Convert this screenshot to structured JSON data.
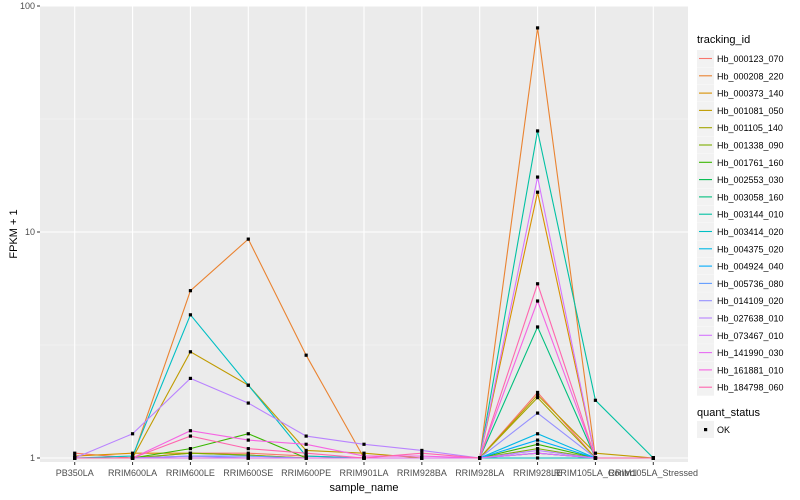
{
  "chart_data": {
    "type": "line",
    "title": "",
    "xlabel": "sample_name",
    "ylabel": "FPKM + 1",
    "yscale": "log10",
    "ylim": [
      0.96,
      100
    ],
    "yticks": [
      1,
      10,
      100
    ],
    "ytick_labels": [
      "1",
      "10",
      "100"
    ],
    "grid": true,
    "legend_placement": "right",
    "legend_title": "tracking_id",
    "shape_legend_title": "quant_status",
    "shape_legend_entries": [
      "OK"
    ],
    "categories": [
      "PB350LA",
      "RRIM600LA",
      "RRIM600LE",
      "RRIM600SE",
      "RRIM600PE",
      "RRIM901LA",
      "RRIM928BA",
      "RRIM928LA",
      "RRIM928LE",
      "RRIM105LA_Control",
      "RRIM105LA_Stressed"
    ],
    "series": [
      {
        "name": "Hb_000123_070",
        "color": "#F8766D",
        "values": [
          1.05,
          1.0,
          1.05,
          1.05,
          1.02,
          1.0,
          1.0,
          1.0,
          1.95,
          1.0,
          1.0
        ]
      },
      {
        "name": "Hb_000208_220",
        "color": "#EA8331",
        "values": [
          1.0,
          1.0,
          5.5,
          9.3,
          2.85,
          1.0,
          1.0,
          1.0,
          80.0,
          1.0,
          1.0
        ]
      },
      {
        "name": "Hb_000373_140",
        "color": "#D89000",
        "values": [
          1.02,
          1.05,
          1.05,
          1.03,
          1.0,
          1.0,
          1.0,
          1.0,
          15.0,
          1.0,
          1.0
        ]
      },
      {
        "name": "Hb_001081_050",
        "color": "#C09B00",
        "values": [
          1.0,
          1.0,
          2.95,
          2.1,
          1.08,
          1.05,
          1.0,
          1.0,
          1.9,
          1.05,
          1.0
        ]
      },
      {
        "name": "Hb_001105_140",
        "color": "#A3A500",
        "values": [
          1.0,
          1.0,
          1.0,
          1.0,
          1.0,
          1.0,
          1.0,
          1.0,
          1.85,
          1.0,
          1.0
        ]
      },
      {
        "name": "Hb_001338_090",
        "color": "#7CAE00",
        "values": [
          1.0,
          1.0,
          1.05,
          1.03,
          1.0,
          1.0,
          1.0,
          1.0,
          1.1,
          1.0,
          1.0
        ]
      },
      {
        "name": "Hb_001761_160",
        "color": "#39B600",
        "values": [
          1.0,
          1.0,
          1.1,
          1.28,
          1.0,
          1.0,
          1.0,
          1.0,
          1.15,
          1.0,
          1.0
        ]
      },
      {
        "name": "Hb_002553_030",
        "color": "#00BB4E",
        "values": [
          1.0,
          1.0,
          1.0,
          1.0,
          1.0,
          1.0,
          1.0,
          1.0,
          1.05,
          1.0,
          1.0
        ]
      },
      {
        "name": "Hb_003058_160",
        "color": "#00BF7D",
        "values": [
          1.0,
          1.0,
          1.0,
          1.0,
          1.0,
          1.0,
          1.0,
          1.0,
          3.8,
          1.0,
          1.0
        ]
      },
      {
        "name": "Hb_003144_010",
        "color": "#00C1A3",
        "values": [
          1.0,
          1.0,
          1.0,
          1.0,
          1.0,
          1.0,
          1.0,
          1.0,
          28.0,
          1.8,
          1.0
        ]
      },
      {
        "name": "Hb_003414_020",
        "color": "#00BFC4",
        "values": [
          1.0,
          1.02,
          4.3,
          2.1,
          1.02,
          1.0,
          1.0,
          1.0,
          1.0,
          1.0,
          1.0
        ]
      },
      {
        "name": "Hb_004375_020",
        "color": "#00B8E5",
        "values": [
          1.0,
          1.0,
          1.0,
          1.0,
          1.0,
          1.0,
          1.0,
          1.0,
          1.28,
          1.0,
          1.0
        ]
      },
      {
        "name": "Hb_004924_040",
        "color": "#00ACFC",
        "values": [
          1.0,
          1.0,
          1.0,
          1.0,
          1.0,
          1.0,
          1.0,
          1.0,
          1.2,
          1.0,
          1.0
        ]
      },
      {
        "name": "Hb_005736_080",
        "color": "#619CFF",
        "values": [
          1.0,
          1.0,
          1.02,
          1.02,
          1.0,
          1.0,
          1.0,
          1.0,
          1.05,
          1.0,
          1.0
        ]
      },
      {
        "name": "Hb_014109_020",
        "color": "#9590FF",
        "values": [
          1.0,
          1.0,
          1.02,
          1.0,
          1.0,
          1.0,
          1.0,
          1.0,
          1.58,
          1.0,
          1.0
        ]
      },
      {
        "name": "Hb_027638_010",
        "color": "#B983FF",
        "values": [
          1.0,
          1.28,
          2.25,
          1.75,
          1.25,
          1.15,
          1.08,
          1.0,
          1.08,
          1.0,
          1.0
        ]
      },
      {
        "name": "Hb_073467_010",
        "color": "#D575FE",
        "values": [
          1.0,
          1.0,
          1.0,
          1.0,
          1.0,
          1.0,
          1.0,
          1.0,
          17.5,
          1.0,
          1.0
        ]
      },
      {
        "name": "Hb_141990_030",
        "color": "#E76BF3",
        "values": [
          1.0,
          1.0,
          1.0,
          1.0,
          1.0,
          1.0,
          1.0,
          1.0,
          1.05,
          1.0,
          1.0
        ]
      },
      {
        "name": "Hb_161881_010",
        "color": "#F564E3",
        "values": [
          1.0,
          1.0,
          1.32,
          1.2,
          1.15,
          1.02,
          1.02,
          1.0,
          4.95,
          1.0,
          1.0
        ]
      },
      {
        "name": "Hb_184798_060",
        "color": "#FF65AE",
        "values": [
          1.0,
          1.0,
          1.25,
          1.1,
          1.05,
          1.0,
          1.05,
          1.0,
          5.9,
          1.0,
          1.0
        ]
      }
    ]
  }
}
